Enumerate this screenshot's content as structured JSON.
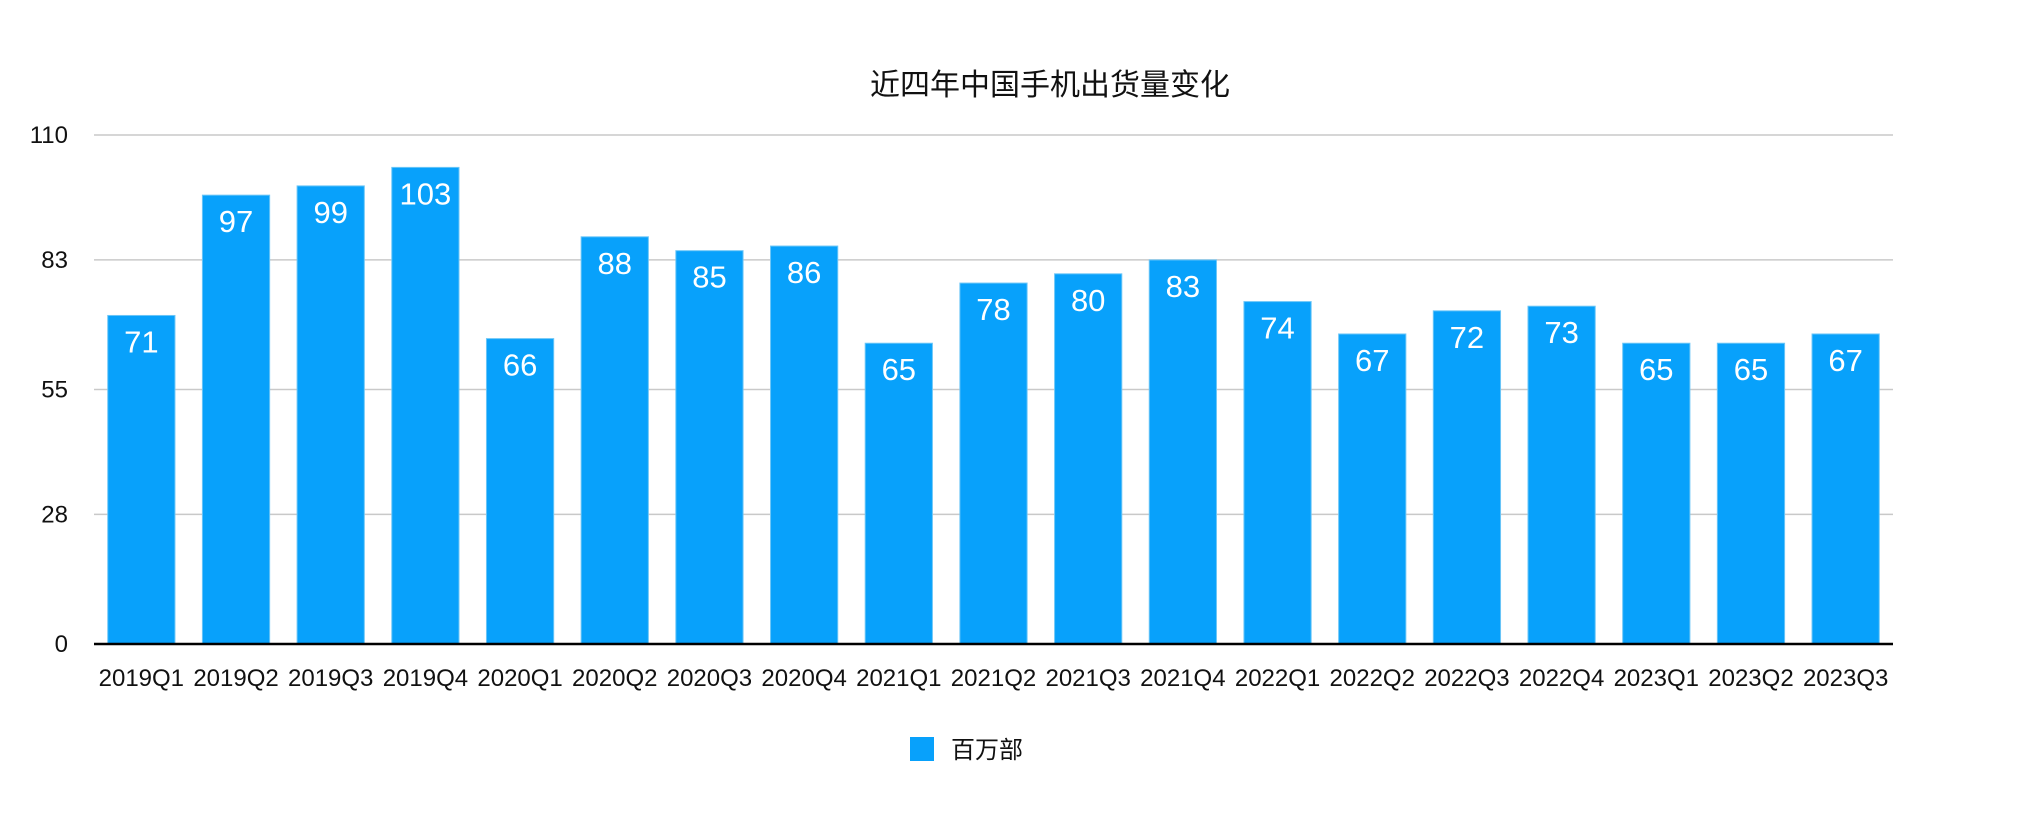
{
  "chart_data": {
    "type": "bar",
    "title": "近四年中国手机出货量变化",
    "categories": [
      "2019Q1",
      "2019Q2",
      "2019Q3",
      "2019Q4",
      "2020Q1",
      "2020Q2",
      "2020Q3",
      "2020Q4",
      "2021Q1",
      "2021Q2",
      "2021Q3",
      "2021Q4",
      "2022Q1",
      "2022Q2",
      "2022Q3",
      "2022Q4",
      "2023Q1",
      "2023Q2",
      "2023Q3"
    ],
    "series": [
      {
        "name": "百万部",
        "values": [
          71,
          97,
          99,
          103,
          66,
          88,
          85,
          86,
          65,
          78,
          80,
          83,
          74,
          67,
          72,
          73,
          65,
          65,
          67
        ]
      }
    ],
    "yticks": [
      "0",
      "28",
      "55",
      "83",
      "110"
    ],
    "ylim": [
      0,
      110
    ],
    "xlabel": "",
    "ylabel": "",
    "grid": true,
    "legend_position": "bottom-center",
    "colors": {
      "bar": "#08a1fb",
      "bar_edge": "#6cc6f7",
      "label": "#ffffff"
    }
  }
}
